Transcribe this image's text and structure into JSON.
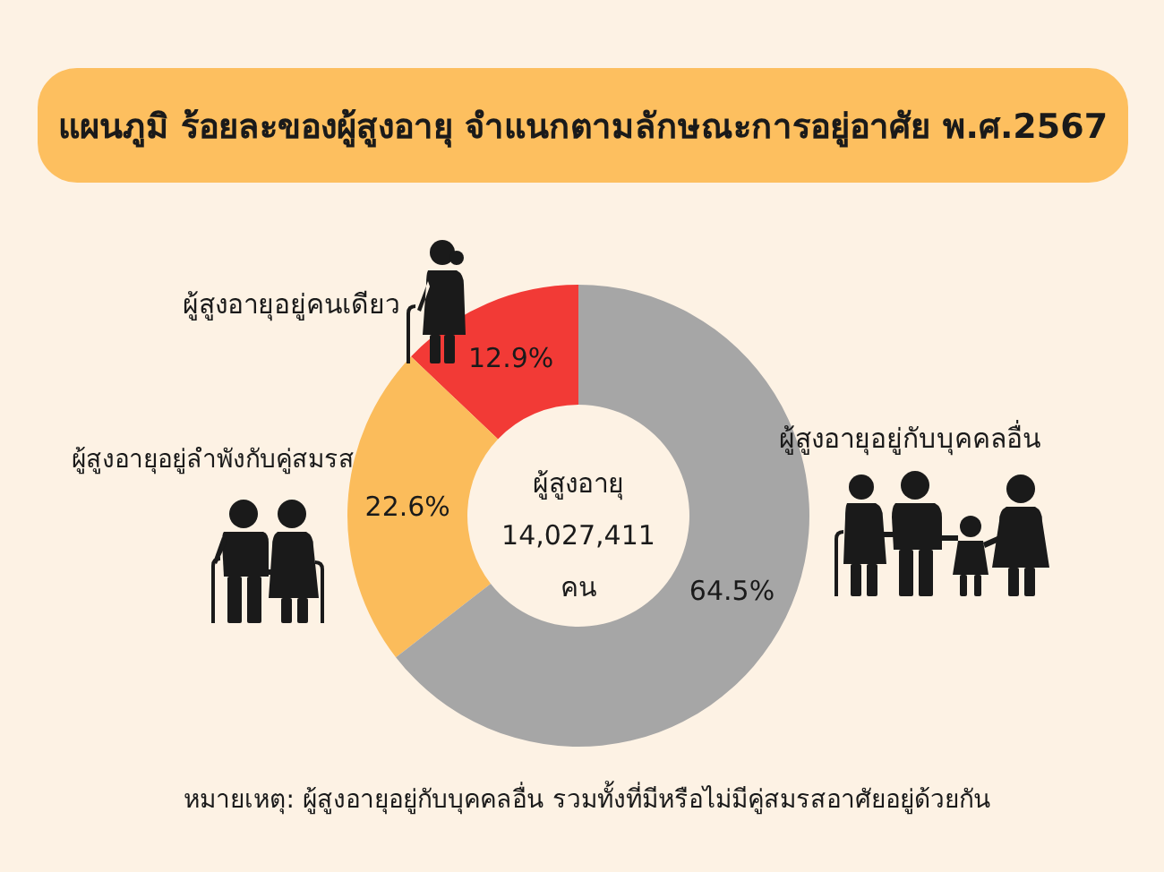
{
  "chart_data": {
    "type": "donut",
    "title": "แผนภูมิ ร้อยละของผู้สูงอายุ จำแนกตามลักษณะการอยู่อาศัย พ.ศ.2567",
    "categories": [
      "ผู้สูงอายุอยู่คนเดียว",
      "ผู้สูงอายุอยู่ลำพังกับคู่สมรส",
      "ผู้สูงอายุอยู่กับบุคคลอื่น"
    ],
    "values": [
      12.9,
      22.6,
      64.5
    ],
    "colors": [
      "#f23a36",
      "#fbbc5b",
      "#a6a6a6"
    ],
    "value_labels": [
      "12.9%",
      "22.6%",
      "64.5%"
    ],
    "annotations": [
      "ผู้สูงอายุ",
      "14,027,411",
      "คน",
      "หมายเหตุ: ผู้สูงอายุอยู่กับบุคคลอื่น รวมทั้งที่มีหรือไม่มีคู่สมรสอาศัยอยู่ด้วยกัน"
    ]
  }
}
